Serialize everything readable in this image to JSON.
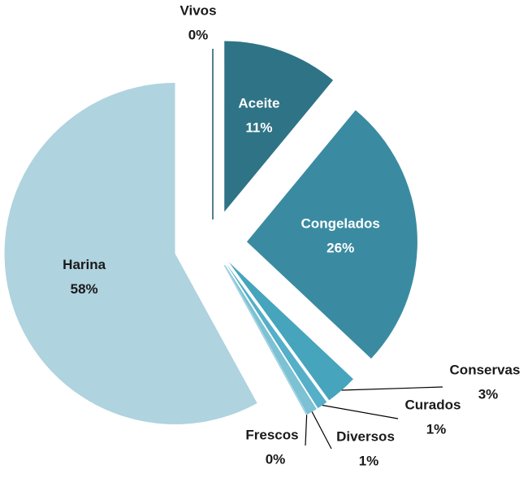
{
  "chart_data": {
    "type": "pie",
    "categories": [
      "Vivos",
      "Aceite",
      "Congelados",
      "Conservas",
      "Curados",
      "Diversos",
      "Frescos",
      "Harina"
    ],
    "values": [
      0,
      11,
      26,
      3,
      1,
      1,
      0,
      58
    ],
    "value_labels": [
      "0%",
      "11%",
      "26%",
      "3%",
      "1%",
      "1%",
      "0%",
      "58%"
    ],
    "colors": [
      "#1f5566",
      "#2f7386",
      "#3a8ba1",
      "#46a4bd",
      "#55afc8",
      "#7cc1d4",
      "#9dcfdf",
      "#afd3df"
    ]
  }
}
